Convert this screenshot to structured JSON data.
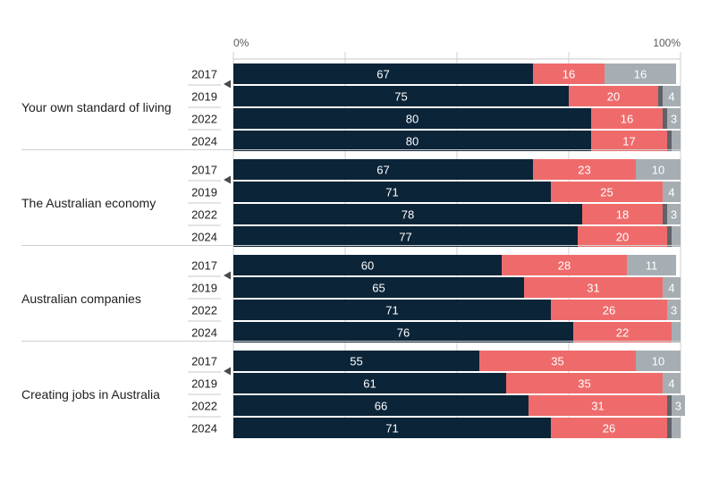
{
  "chart_data": {
    "type": "bar",
    "orientation": "horizontal",
    "stacked": true,
    "title": "",
    "xlabel": "",
    "ylabel": "",
    "xlim": [
      0,
      100
    ],
    "axis_tick_labels": [
      "0%",
      "100%"
    ],
    "grid": true,
    "legend": "none",
    "segment_colors": [
      "#0b2438",
      "#ef6b6b",
      "#5f6368",
      "#a6aeb3"
    ],
    "groups": [
      {
        "label": "Your own standard of living",
        "rows": [
          {
            "year": "2017",
            "segments": [
              67,
              16,
              0,
              16
            ],
            "labels": [
              "67",
              "16",
              "",
              "16"
            ]
          },
          {
            "year": "2019",
            "segments": [
              75,
              20,
              1,
              4
            ],
            "labels": [
              "75",
              "20",
              "",
              "4"
            ]
          },
          {
            "year": "2022",
            "segments": [
              80,
              16,
              1,
              3
            ],
            "labels": [
              "80",
              "16",
              "",
              "3"
            ]
          },
          {
            "year": "2024",
            "segments": [
              80,
              17,
              1,
              2
            ],
            "labels": [
              "80",
              "17",
              "",
              ""
            ]
          }
        ]
      },
      {
        "label": "The Australian economy",
        "rows": [
          {
            "year": "2017",
            "segments": [
              67,
              23,
              0,
              10
            ],
            "labels": [
              "67",
              "23",
              "",
              "10"
            ]
          },
          {
            "year": "2019",
            "segments": [
              71,
              25,
              0,
              4
            ],
            "labels": [
              "71",
              "25",
              "",
              "4"
            ]
          },
          {
            "year": "2022",
            "segments": [
              78,
              18,
              1,
              3
            ],
            "labels": [
              "78",
              "18",
              "",
              "3"
            ]
          },
          {
            "year": "2024",
            "segments": [
              77,
              20,
              1,
              2
            ],
            "labels": [
              "77",
              "20",
              "",
              ""
            ]
          }
        ]
      },
      {
        "label": "Australian companies",
        "rows": [
          {
            "year": "2017",
            "segments": [
              60,
              28,
              0,
              11
            ],
            "labels": [
              "60",
              "28",
              "",
              "11"
            ]
          },
          {
            "year": "2019",
            "segments": [
              65,
              31,
              0,
              4
            ],
            "labels": [
              "65",
              "31",
              "",
              "4"
            ]
          },
          {
            "year": "2022",
            "segments": [
              71,
              26,
              0,
              3
            ],
            "labels": [
              "71",
              "26",
              "",
              "3"
            ]
          },
          {
            "year": "2024",
            "segments": [
              76,
              22,
              0,
              2
            ],
            "labels": [
              "76",
              "22",
              "",
              ""
            ]
          }
        ]
      },
      {
        "label": "Creating jobs in Australia",
        "rows": [
          {
            "year": "2017",
            "segments": [
              55,
              35,
              0,
              10
            ],
            "labels": [
              "55",
              "35",
              "",
              "10"
            ]
          },
          {
            "year": "2019",
            "segments": [
              61,
              35,
              0,
              4
            ],
            "labels": [
              "61",
              "35",
              "",
              "4"
            ]
          },
          {
            "year": "2022",
            "segments": [
              66,
              31,
              1,
              3
            ],
            "labels": [
              "66",
              "31",
              "",
              "3"
            ]
          },
          {
            "year": "2024",
            "segments": [
              71,
              26,
              1,
              2
            ],
            "labels": [
              "71",
              "26",
              "",
              ""
            ]
          }
        ]
      }
    ]
  }
}
